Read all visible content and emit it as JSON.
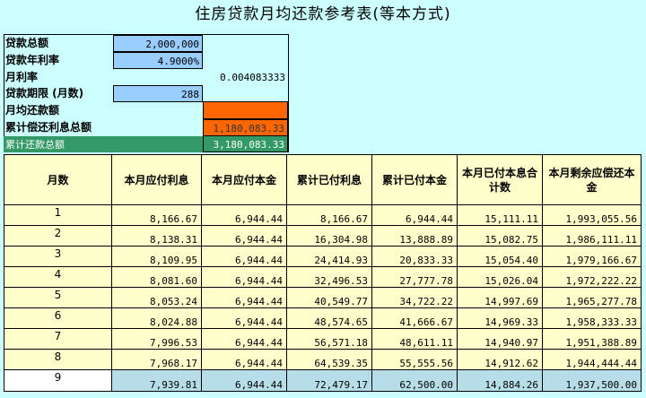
{
  "title": "住房贷款月均还款参考表(等本方式)",
  "params": {
    "loan_total_label": "贷款总额",
    "loan_total_value": "2,000,000",
    "annual_rate_label": "贷款年利率",
    "annual_rate_value": "4.9000%",
    "monthly_rate_label": "月利率",
    "monthly_rate_value": "0.004083333",
    "term_label": "贷款期限 (月数)",
    "term_value": "288",
    "avg_payment_label": "月均还款额",
    "avg_payment_value": "",
    "total_interest_label": "累计偿还利息总额",
    "total_interest_value": "1,180,083.33",
    "total_repaid_label": "累计还款总额",
    "total_repaid_value": "3,180,083.33"
  },
  "colors": {
    "sheet_bg": "#ccffff",
    "input_blue": "#99ccff",
    "orange": "#ff6600",
    "green": "#339966",
    "table_bg": "#ffffcc",
    "selected_row": "#b7dee8"
  },
  "table": {
    "headers": [
      "月数",
      "本月应付利息",
      "本月应付本金",
      "累计已付利息",
      "累计已付本金",
      "本月已付本息合计数",
      "本月剩余应偿还本金"
    ],
    "rows": [
      [
        "1",
        "8,166.67",
        "6,944.44",
        "8,166.67",
        "6,944.44",
        "15,111.11",
        "1,993,055.56"
      ],
      [
        "2",
        "8,138.31",
        "6,944.44",
        "16,304.98",
        "13,888.89",
        "15,082.75",
        "1,986,111.11"
      ],
      [
        "3",
        "8,109.95",
        "6,944.44",
        "24,414.93",
        "20,833.33",
        "15,054.40",
        "1,979,166.67"
      ],
      [
        "4",
        "8,081.60",
        "6,944.44",
        "32,496.53",
        "27,777.78",
        "15,026.04",
        "1,972,222.22"
      ],
      [
        "5",
        "8,053.24",
        "6,944.44",
        "40,549.77",
        "34,722.22",
        "14,997.69",
        "1,965,277.78"
      ],
      [
        "6",
        "8,024.88",
        "6,944.44",
        "48,574.65",
        "41,666.67",
        "14,969.33",
        "1,958,333.33"
      ],
      [
        "7",
        "7,996.53",
        "6,944.44",
        "56,571.18",
        "48,611.11",
        "14,940.97",
        "1,951,388.89"
      ],
      [
        "8",
        "7,968.17",
        "6,944.44",
        "64,539.35",
        "55,555.56",
        "14,912.62",
        "1,944,444.44"
      ],
      [
        "9",
        "7,939.81",
        "6,944.44",
        "72,479.17",
        "62,500.00",
        "14,884.26",
        "1,937,500.00"
      ]
    ]
  }
}
